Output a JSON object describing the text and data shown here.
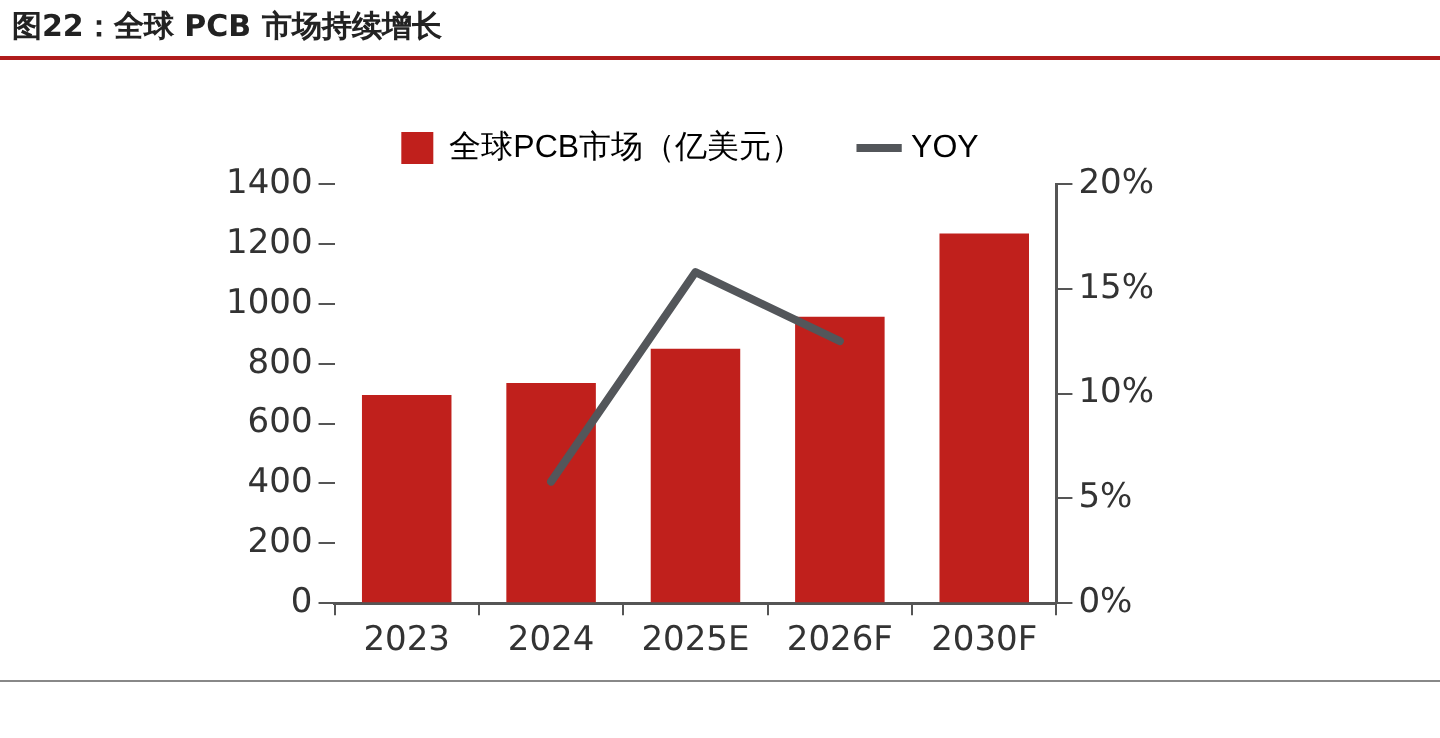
{
  "chart_data": {
    "type": "bar",
    "title": "图22：全球 PCB 市场持续增长",
    "categories": [
      "2023",
      "2024",
      "2025E",
      "2026F",
      "2030F"
    ],
    "series": [
      {
        "name": "全球PCB市场（亿美元）",
        "color": "#c0201c",
        "values": [
          695,
          735,
          850,
          957,
          1235
        ]
      },
      {
        "name": "YOY",
        "type": "line",
        "axis": "y2",
        "color": "#53565a",
        "values": [
          null,
          5.8,
          15.8,
          12.5,
          null
        ]
      }
    ],
    "ylim": [
      0,
      1400
    ],
    "yticks": [
      0,
      200,
      400,
      600,
      800,
      1000,
      1200,
      1400
    ],
    "y2lim": [
      0,
      20
    ],
    "y2ticks": [
      {
        "value": 0,
        "label": "0%"
      },
      {
        "value": 5,
        "label": "5%"
      },
      {
        "value": 10,
        "label": "10%"
      },
      {
        "value": 15,
        "label": "15%"
      },
      {
        "value": 20,
        "label": "20%"
      }
    ],
    "grid": false,
    "legend": "top",
    "marker": "none"
  }
}
